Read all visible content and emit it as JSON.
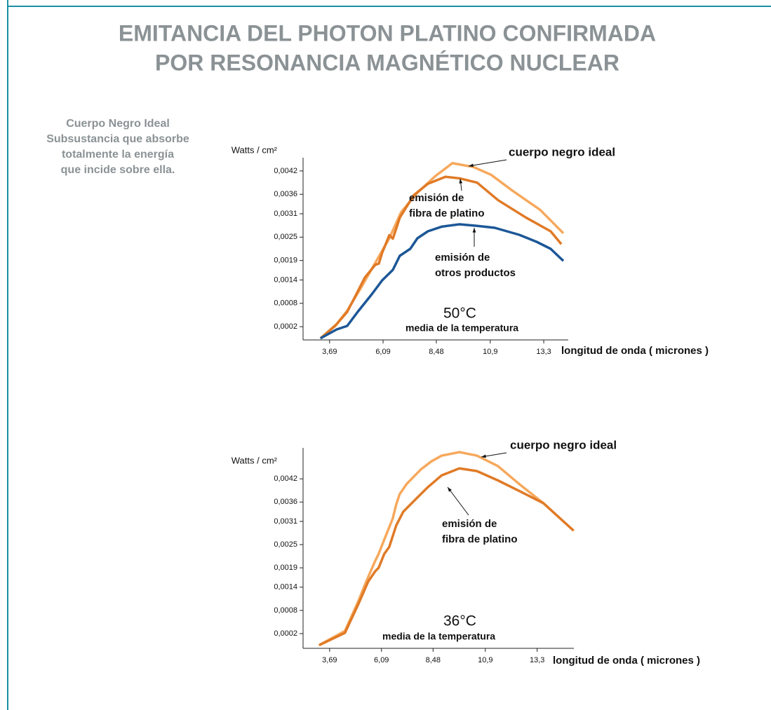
{
  "title": [
    "EMITANCIA DEL PHOTON PLATINO CONFIRMADA",
    "POR RESONANCIA MAGNÉTICO NUCLEAR"
  ],
  "sidebar": [
    "Cuerpo Negro Ideal",
    "Subsustancia que absorbe",
    "totalmente la energía",
    "que incide sobre ella."
  ],
  "chart_data": [
    {
      "type": "line",
      "y_label": "Watts / cm²",
      "x_label": "longitud de onda ( micrones )",
      "temperature": "50°C",
      "temperature_label": "media de la temperatura",
      "xlim": [
        2.5,
        14.4
      ],
      "ylim": [
        -0.00014,
        0.00454
      ],
      "xticks": [
        {
          "value": 3.69,
          "label": "3,69"
        },
        {
          "value": 6.09,
          "label": "6,09"
        },
        {
          "value": 8.48,
          "label": "8,48"
        },
        {
          "value": 10.9,
          "label": "10,9"
        },
        {
          "value": 13.3,
          "label": "13,3"
        }
      ],
      "yticks": [
        {
          "value": 0.0002,
          "label": "0,0002"
        },
        {
          "value": 0.0008,
          "label": "0,0008"
        },
        {
          "value": 0.0014,
          "label": "0,0014"
        },
        {
          "value": 0.0019,
          "label": "0,0019"
        },
        {
          "value": 0.0025,
          "label": "0,0025"
        },
        {
          "value": 0.0031,
          "label": "0,0031"
        },
        {
          "value": 0.0036,
          "label": "0,0036"
        },
        {
          "value": 0.0042,
          "label": "0,0042"
        }
      ],
      "series": [
        {
          "label": [
            "cuerpo negro ideal"
          ],
          "color": "#f6a85c",
          "x": [
            3.28,
            4.01,
            4.48,
            5.11,
            5.74,
            6.37,
            6.9,
            7.63,
            8.42,
            9.2,
            10.15,
            10.94,
            11.88,
            13.14,
            14.18
          ],
          "values": [
            -0.0001,
            0.00027,
            0.00061,
            0.00121,
            0.00184,
            0.00247,
            0.00314,
            0.00364,
            0.00406,
            0.0044,
            0.0043,
            0.0041,
            0.0037,
            0.0032,
            0.0026
          ]
        },
        {
          "label": [
            "emisión de",
            "fibra de platino"
          ],
          "color": "#e07a26",
          "x": [
            3.28,
            3.94,
            4.48,
            4.95,
            5.27,
            5.74,
            5.9,
            6.05,
            6.37,
            6.53,
            6.84,
            7.47,
            8.1,
            8.89,
            9.52,
            10.31,
            11.25,
            12.51,
            13.61,
            14.09
          ],
          "values": [
            -0.0001,
            0.00022,
            0.00058,
            0.0011,
            0.00146,
            0.00179,
            0.00182,
            0.0021,
            0.00255,
            0.00246,
            0.003,
            0.00358,
            0.00387,
            0.00405,
            0.00401,
            0.0039,
            0.00345,
            0.003,
            0.00265,
            0.00232
          ]
        },
        {
          "label": [
            "emisión de",
            "otros productos"
          ],
          "color": "#1c5797",
          "x": [
            3.28,
            4.01,
            4.48,
            4.95,
            5.58,
            6.05,
            6.53,
            6.84,
            7.31,
            7.63,
            8.1,
            8.73,
            9.52,
            10.31,
            11.1,
            12.2,
            12.98,
            13.61,
            14.18
          ],
          "values": [
            -0.0001,
            0.00013,
            0.00022,
            0.00058,
            0.00103,
            0.00139,
            0.00166,
            0.00202,
            0.0022,
            0.00247,
            0.00265,
            0.00277,
            0.00283,
            0.00279,
            0.00274,
            0.00256,
            0.00238,
            0.0022,
            0.00189
          ]
        }
      ]
    },
    {
      "type": "line",
      "y_label": "Watts / cm²",
      "x_label": "longitud de onda ( micrones )",
      "temperature": "36°C",
      "temperature_label": "media de la temperatura",
      "xlim": [
        2.46,
        15.0
      ],
      "ylim": [
        -0.00018,
        0.005
      ],
      "xticks": [
        {
          "value": 3.69,
          "label": "3,69"
        },
        {
          "value": 6.09,
          "label": "6,09"
        },
        {
          "value": 8.48,
          "label": "8,48"
        },
        {
          "value": 10.9,
          "label": "10,9"
        },
        {
          "value": 13.3,
          "label": "13,3"
        }
      ],
      "yticks": [
        {
          "value": 0.0002,
          "label": "0,0002"
        },
        {
          "value": 0.0008,
          "label": "0,0008"
        },
        {
          "value": 0.0014,
          "label": "0,0014"
        },
        {
          "value": 0.0019,
          "label": "0,0019"
        },
        {
          "value": 0.0025,
          "label": "0,0025"
        },
        {
          "value": 0.0031,
          "label": "0,0031"
        },
        {
          "value": 0.0036,
          "label": "0,0036"
        },
        {
          "value": 0.0042,
          "label": "0,0042"
        }
      ],
      "series": [
        {
          "label": [
            "cuerpo negro ideal"
          ],
          "color": "#f6a85c",
          "x": [
            3.2,
            4.4,
            4.99,
            5.38,
            5.8,
            5.96,
            6.22,
            6.35,
            6.61,
            6.77,
            6.93,
            7.26,
            7.91,
            8.4,
            8.88,
            9.7,
            10.51,
            11.48,
            12.46,
            13.59
          ],
          "values": [
            -0.0001,
            0.00027,
            0.001,
            0.00154,
            0.00208,
            0.00226,
            0.00263,
            0.00281,
            0.00317,
            0.00353,
            0.0038,
            0.00407,
            0.00444,
            0.00465,
            0.0048,
            0.00489,
            0.0048,
            0.00453,
            0.00407,
            0.00357
          ]
        },
        {
          "label": [
            "emisión de",
            "fibra de platino"
          ],
          "color": "#e07a26",
          "x": [
            3.2,
            4.4,
            5.05,
            5.47,
            5.8,
            5.96,
            6.22,
            6.45,
            6.77,
            7.1,
            7.58,
            8.23,
            8.88,
            9.7,
            10.51,
            11.48,
            12.46,
            13.59,
            14.99
          ],
          "values": [
            -0.0001,
            0.00022,
            0.001,
            0.00154,
            0.00181,
            0.0019,
            0.00226,
            0.00244,
            0.00299,
            0.00335,
            0.00362,
            0.00398,
            0.00429,
            0.00447,
            0.0044,
            0.00416,
            0.00389,
            0.00357,
            0.00286
          ]
        }
      ]
    }
  ]
}
